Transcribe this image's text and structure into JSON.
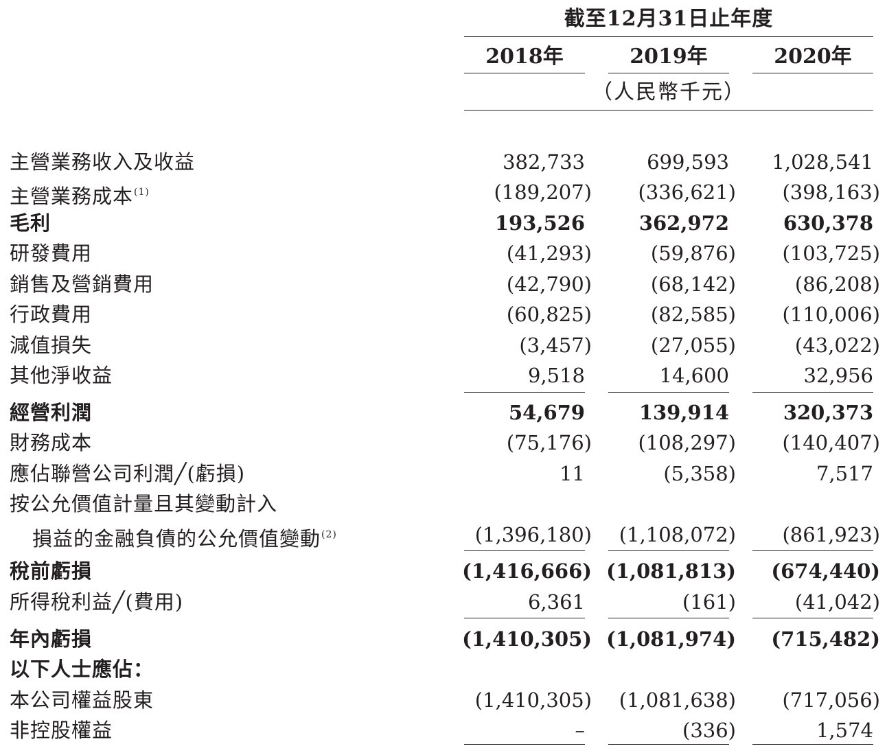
{
  "header": {
    "period": "截至12月31日止年度",
    "years": [
      "2018年",
      "2019年",
      "2020年"
    ],
    "unit": "（人民幣千元）"
  },
  "rows": [
    {
      "label": "主營業務收入及收益",
      "sup": "",
      "values": [
        "382,733",
        "699,593",
        "1,028,541"
      ]
    },
    {
      "label": "主營業務成本",
      "sup": "(1)",
      "values": [
        "(189,207)",
        "(336,621)",
        "(398,163)"
      ]
    },
    {
      "label": "毛利",
      "sup": "",
      "values": [
        "193,526",
        "362,972",
        "630,378"
      ]
    },
    {
      "label": "研發費用",
      "sup": "",
      "values": [
        "(41,293)",
        "(59,876)",
        "(103,725)"
      ]
    },
    {
      "label": "銷售及營銷費用",
      "sup": "",
      "values": [
        "(42,790)",
        "(68,142)",
        "(86,208)"
      ]
    },
    {
      "label": "行政費用",
      "sup": "",
      "values": [
        "(60,825)",
        "(82,585)",
        "(110,006)"
      ]
    },
    {
      "label": "減值損失",
      "sup": "",
      "values": [
        "(3,457)",
        "(27,055)",
        "(43,022)"
      ]
    },
    {
      "label": "其他淨收益",
      "sup": "",
      "values": [
        "9,518",
        "14,600",
        "32,956"
      ]
    },
    {
      "label": "經營利潤",
      "sup": "",
      "values": [
        "54,679",
        "139,914",
        "320,373"
      ]
    },
    {
      "label": "財務成本",
      "sup": "",
      "values": [
        "(75,176)",
        "(108,297)",
        "(140,407)"
      ]
    },
    {
      "label": "應佔聯營公司利潤╱(虧損)",
      "sup": "",
      "values": [
        "11",
        "(5,358)",
        "7,517"
      ]
    },
    {
      "label": "按公允價值計量且其變動計入",
      "sup": "",
      "values": [
        "",
        "",
        ""
      ]
    },
    {
      "label": "損益的金融負債的公允價值變動",
      "sup": "(2)",
      "values": [
        "(1,396,180)",
        "(1,108,072)",
        "(861,923)"
      ]
    },
    {
      "label": "稅前虧損",
      "sup": "",
      "values": [
        "(1,416,666)",
        "(1,081,813)",
        "(674,440)"
      ]
    },
    {
      "label": "所得稅利益╱(費用)",
      "sup": "",
      "values": [
        "6,361",
        "(161)",
        "(41,042)"
      ]
    },
    {
      "label": "年內虧損",
      "sup": "",
      "values": [
        "(1,410,305)",
        "(1,081,974)",
        "(715,482)"
      ]
    },
    {
      "label": "以下人士應佔：",
      "sup": "",
      "values": [
        "",
        "",
        ""
      ]
    },
    {
      "label": "本公司權益股東",
      "sup": "",
      "values": [
        "(1,410,305)",
        "(1,081,638)",
        "(717,056)"
      ]
    },
    {
      "label": "非控股權益",
      "sup": "",
      "values": [
        "–",
        "(336)",
        "1,574"
      ]
    }
  ]
}
